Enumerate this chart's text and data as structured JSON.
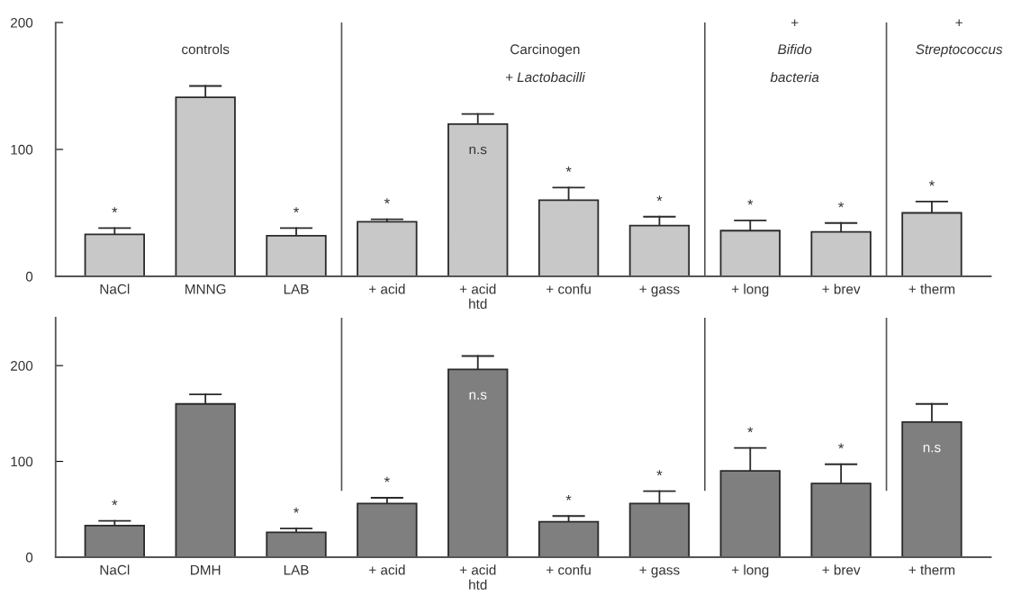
{
  "chart_data": [
    {
      "type": "bar",
      "categories": [
        "NaCl",
        "MNNG",
        "LAB",
        "+ acid",
        "+ acid\nhtd",
        "+ confu",
        "+ gass",
        "+ long",
        "+ brev",
        "+ therm"
      ],
      "values": [
        33,
        141,
        32,
        43,
        120,
        60,
        40,
        36,
        35,
        50
      ],
      "errors": [
        [
          33,
          38
        ],
        [
          141,
          150
        ],
        [
          32,
          38
        ],
        [
          43,
          45
        ],
        [
          120,
          128
        ],
        [
          60,
          70
        ],
        [
          40,
          47
        ],
        [
          36,
          44
        ],
        [
          35,
          42
        ],
        [
          50,
          59
        ]
      ],
      "color": "#c8c8c8",
      "ylim": [
        0,
        200
      ],
      "yticks": [
        0,
        100,
        200
      ],
      "annotations": [
        "controls",
        "Carcinogen",
        "+ Lactobacilli",
        "+",
        "Bifido",
        "bacteria",
        "+",
        "Streptococcus",
        {
          "text": "*",
          "x": "NaCl",
          "y": 38
        },
        {
          "text": "*",
          "x": "LAB",
          "y": 38
        },
        {
          "text": "*",
          "x": "+ acid",
          "y": 45
        },
        {
          "text": "n.s",
          "x": "+ acid\nhtd",
          "y": 120
        },
        {
          "text": "*",
          "x": "+ confu",
          "y": 70
        },
        {
          "text": "*",
          "x": "+ gass",
          "y": 47
        },
        {
          "text": "*",
          "x": "+ long",
          "y": 44
        },
        {
          "text": "*",
          "x": "+ brev",
          "y": 42
        },
        {
          "text": "*",
          "x": "+ therm",
          "y": 59
        }
      ]
    },
    {
      "type": "bar",
      "categories": [
        "NaCl",
        "DMH",
        "LAB",
        "+ acid",
        "+ acid\nhtd",
        "+ confu",
        "+ gass",
        "+ long",
        "+ brev",
        "+ therm"
      ],
      "values": [
        33,
        160,
        26,
        56,
        196,
        37,
        56,
        90,
        77,
        141
      ],
      "errors": [
        [
          33,
          38
        ],
        [
          160,
          170
        ],
        [
          26,
          30
        ],
        [
          56,
          62
        ],
        [
          196,
          210
        ],
        [
          37,
          43
        ],
        [
          56,
          69
        ],
        [
          90,
          114
        ],
        [
          77,
          97
        ],
        [
          141,
          160
        ]
      ],
      "color": "#7f7f7f",
      "ylim": [
        0,
        250
      ],
      "yticks": [
        0,
        100,
        200
      ],
      "annotations": [
        {
          "text": "*",
          "x": "NaCl",
          "y": 38
        },
        {
          "text": "*",
          "x": "LAB",
          "y": 30
        },
        {
          "text": "*",
          "x": "+ acid",
          "y": 62
        },
        {
          "text": "n.s",
          "x": "+ acid\nhtd",
          "y": 196
        },
        {
          "text": "*",
          "x": "+ confu",
          "y": 43
        },
        {
          "text": "*",
          "x": "+ gass",
          "y": 69
        },
        {
          "text": "*",
          "x": "+ long",
          "y": 114
        },
        {
          "text": "*",
          "x": "+ brev",
          "y": 97
        },
        {
          "text": "n.s",
          "x": "+ therm",
          "y": 141
        }
      ]
    }
  ]
}
